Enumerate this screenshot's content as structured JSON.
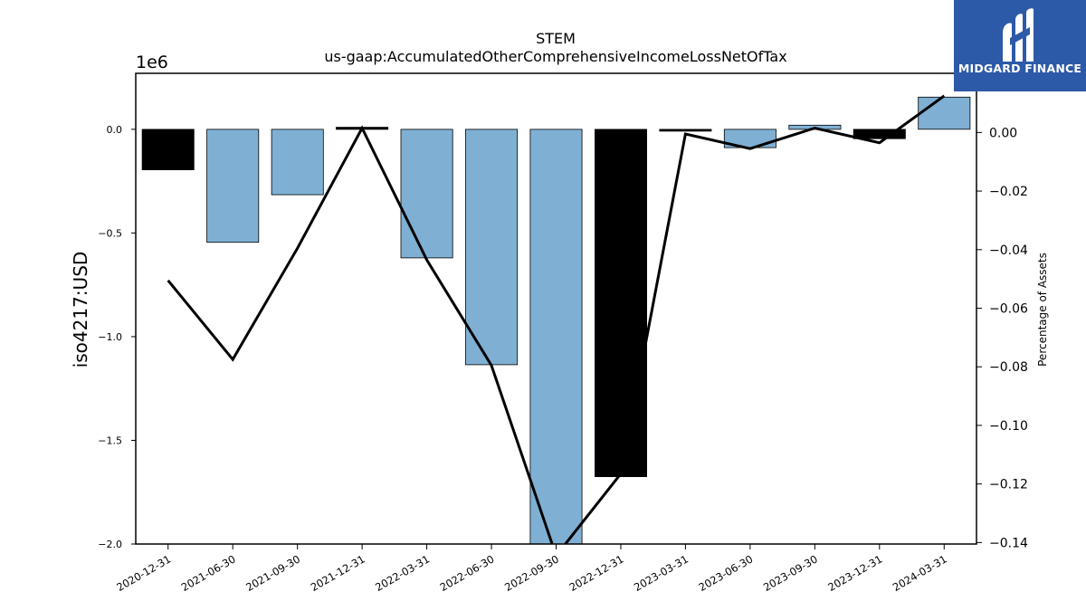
{
  "chart_data": {
    "type": "bar",
    "title": "STEM",
    "subtitle": "us-gaap:AccumulatedOtherComprehensiveIncomeLossNetOfTax",
    "ylabel": "iso4217:USD",
    "y2label": "Percentage of Assets",
    "y_offset_label": "1e6",
    "categories": [
      "2020-12-31",
      "2021-06-30",
      "2021-09-30",
      "2021-12-31",
      "2022-03-31",
      "2022-06-30",
      "2022-09-30",
      "2022-12-31",
      "2023-03-31",
      "2023-06-30",
      "2023-09-30",
      "2023-12-31",
      "2024-03-31"
    ],
    "series": [
      {
        "kind": "bar",
        "values": [
          -195000,
          -545000,
          -315000,
          10000,
          -620000,
          -1135000,
          -2020000,
          -1675000,
          -5000,
          -88000,
          20000,
          -45000,
          155000
        ],
        "colors": [
          "#000000",
          "#7fb0d4",
          "#7fb0d4",
          "#000000",
          "#7fb0d4",
          "#7fb0d4",
          "#7fb0d4",
          "#000000",
          "#000000",
          "#7fb0d4",
          "#7fb0d4",
          "#000000",
          "#7fb0d4"
        ]
      },
      {
        "kind": "line",
        "axis": "right",
        "values": [
          -0.0505,
          -0.0775,
          -0.0395,
          0.0015,
          -0.0435,
          -0.0795,
          -0.1445,
          -0.1165,
          -0.0005,
          -0.0055,
          0.0015,
          -0.0035,
          0.0125
        ]
      }
    ],
    "ylim": [
      -2000000.0,
      270000.0
    ],
    "y2lim": [
      -0.1405,
      0.0202
    ],
    "yticks": [
      0.0,
      -0.5,
      -1.0,
      -1.5,
      -2.0
    ],
    "ytick_labels": [
      "0.0",
      "−0.5",
      "−1.0",
      "−1.5",
      "−2.0"
    ],
    "y2ticks": [
      0.0,
      -0.02,
      -0.04,
      -0.06,
      -0.08,
      -0.1,
      -0.12,
      -0.14
    ],
    "y2tick_labels": [
      "0.00",
      "−0.02",
      "−0.04",
      "−0.06",
      "−0.08",
      "−0.10",
      "−0.12",
      "−0.14"
    ],
    "grid": false,
    "legend": "none"
  },
  "brand": {
    "name": "MIDGARD FINANCE",
    "bg_color": "#2d5aa8",
    "icon": "midgard-logo-icon"
  }
}
